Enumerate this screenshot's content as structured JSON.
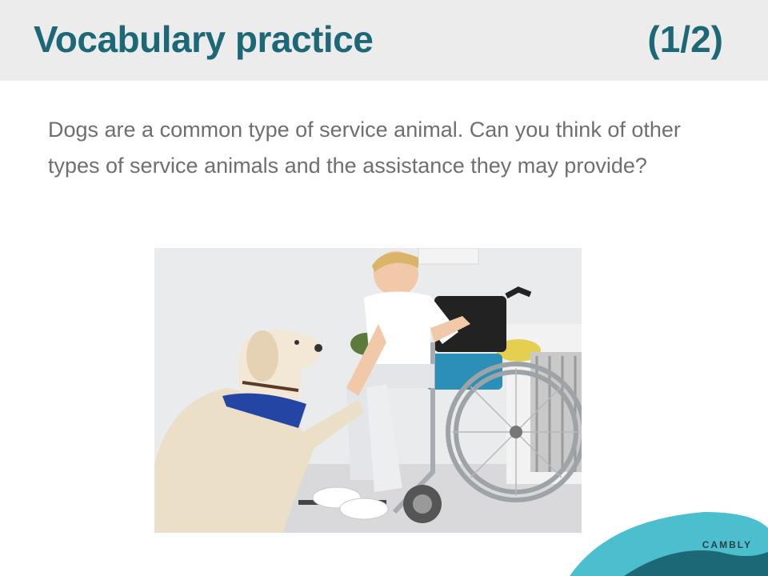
{
  "slide": {
    "title": "Vocabulary practice",
    "page_indicator": "(1/2)",
    "prompt": "Dogs are a common type of service animal. Can you think of other types of service animals and the assistance they may provide?"
  },
  "image": {
    "subject": "boy-in-wheelchair-with-service-dog"
  },
  "brand": {
    "logo_text": "CAMBLY"
  },
  "colors": {
    "title": "#1d6877",
    "header_bg": "#ececec",
    "body_text": "#6f6f6f",
    "wave_light": "#4bbfce",
    "wave_dark": "#1d6877"
  }
}
